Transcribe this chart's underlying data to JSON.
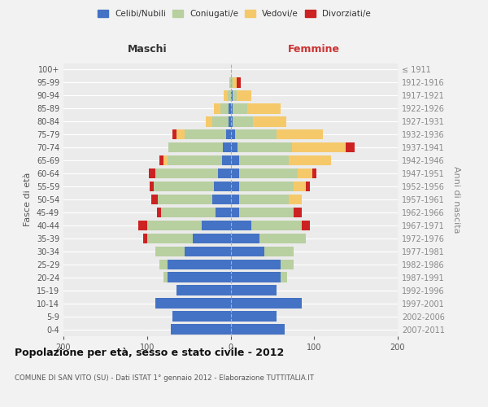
{
  "age_groups": [
    "0-4",
    "5-9",
    "10-14",
    "15-19",
    "20-24",
    "25-29",
    "30-34",
    "35-39",
    "40-44",
    "45-49",
    "50-54",
    "55-59",
    "60-64",
    "65-69",
    "70-74",
    "75-79",
    "80-84",
    "85-89",
    "90-94",
    "95-99",
    "100+"
  ],
  "birth_years": [
    "2007-2011",
    "2002-2006",
    "1997-2001",
    "1992-1996",
    "1987-1991",
    "1982-1986",
    "1977-1981",
    "1972-1976",
    "1967-1971",
    "1962-1966",
    "1957-1961",
    "1952-1956",
    "1947-1951",
    "1942-1946",
    "1937-1941",
    "1932-1936",
    "1927-1931",
    "1922-1926",
    "1917-1921",
    "1912-1916",
    "≤ 1911"
  ],
  "maschi": {
    "celibi": [
      72,
      70,
      90,
      65,
      75,
      75,
      55,
      45,
      35,
      18,
      22,
      20,
      15,
      10,
      9,
      5,
      2,
      2,
      0,
      0,
      0
    ],
    "coniugati": [
      0,
      0,
      0,
      0,
      5,
      10,
      35,
      55,
      65,
      65,
      65,
      72,
      75,
      65,
      65,
      50,
      20,
      10,
      3,
      1,
      0
    ],
    "vedovi": [
      0,
      0,
      0,
      0,
      0,
      0,
      0,
      0,
      0,
      0,
      0,
      0,
      0,
      5,
      0,
      10,
      8,
      8,
      5,
      0,
      0
    ],
    "divorziati": [
      0,
      0,
      0,
      0,
      0,
      0,
      0,
      5,
      10,
      5,
      8,
      5,
      8,
      5,
      0,
      5,
      0,
      0,
      0,
      0,
      0
    ]
  },
  "femmine": {
    "nubili": [
      65,
      55,
      85,
      55,
      60,
      60,
      40,
      35,
      25,
      10,
      10,
      10,
      10,
      10,
      8,
      5,
      2,
      2,
      2,
      0,
      0
    ],
    "coniugate": [
      0,
      0,
      0,
      0,
      8,
      15,
      35,
      55,
      60,
      65,
      60,
      65,
      70,
      60,
      65,
      50,
      25,
      18,
      5,
      2,
      0
    ],
    "vedove": [
      0,
      0,
      0,
      0,
      0,
      0,
      0,
      0,
      0,
      0,
      15,
      15,
      18,
      50,
      65,
      55,
      40,
      40,
      18,
      5,
      0
    ],
    "divorziate": [
      0,
      0,
      0,
      0,
      0,
      0,
      0,
      0,
      10,
      10,
      0,
      5,
      5,
      0,
      10,
      0,
      0,
      0,
      0,
      5,
      0
    ]
  },
  "colors": {
    "celibi": "#4472c4",
    "coniugati": "#b8cfa0",
    "vedovi": "#f5c96a",
    "divorziati": "#cc2222"
  },
  "legend_labels": [
    "Celibi/Nubili",
    "Coniugati/e",
    "Vedovi/e",
    "Divorziati/e"
  ],
  "title": "Popolazione per età, sesso e stato civile - 2012",
  "subtitle": "COMUNE DI SAN VITO (SU) - Dati ISTAT 1° gennaio 2012 - Elaborazione TUTTITALIA.IT",
  "xlabel_maschi": "Maschi",
  "xlabel_femmine": "Femmine",
  "ylabel": "Fasce di età",
  "ylabel2": "Anni di nascita",
  "xlim": 200,
  "background_color": "#f2f2f2",
  "plot_background": "#ebebeb"
}
